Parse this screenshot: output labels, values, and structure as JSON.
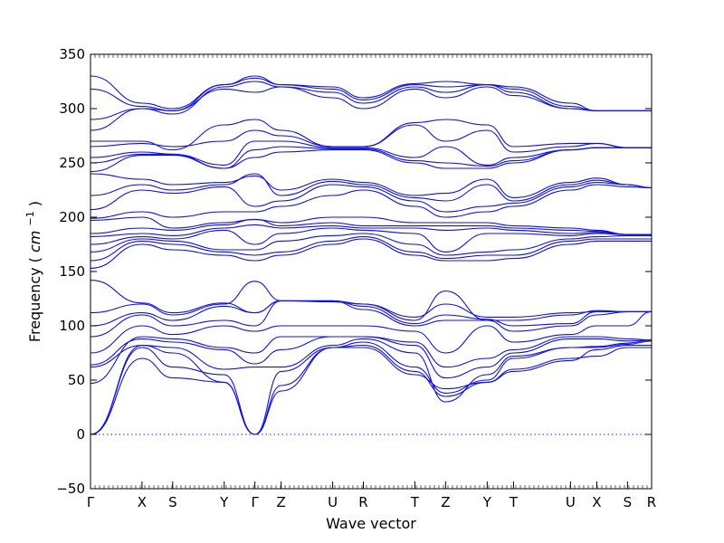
{
  "chart_data": {
    "type": "line",
    "xlabel": "Wave vector",
    "ylabel": "Frequency",
    "ylabel_unit_base": "cm",
    "ylabel_unit_exp": "−1",
    "ylim": [
      -50,
      350
    ],
    "yticks": [
      -50,
      0,
      50,
      100,
      150,
      200,
      250,
      300,
      350
    ],
    "xlim": [
      0,
      1
    ],
    "kpoints": [
      {
        "label": "Γ",
        "x": 0.0
      },
      {
        "label": "X",
        "x": 0.0918
      },
      {
        "label": "S",
        "x": 0.1465
      },
      {
        "label": "Y",
        "x": 0.2383
      },
      {
        "label": "Γ",
        "x": 0.293
      },
      {
        "label": "Z",
        "x": 0.3398
      },
      {
        "label": "U",
        "x": 0.4316
      },
      {
        "label": "R",
        "x": 0.4863
      },
      {
        "label": "T",
        "x": 0.5781
      },
      {
        "label": "Z",
        "x": 0.6328
      },
      {
        "label": "Y",
        "x": 0.707
      },
      {
        "label": "T",
        "x": 0.7539
      },
      {
        "label": "U",
        "x": 0.8555
      },
      {
        "label": "X",
        "x": 0.9023
      },
      {
        "label": "S",
        "x": 0.957
      },
      {
        "label": "R",
        "x": 1.0
      }
    ],
    "reference_line_y": 0,
    "line_color": "#1010e0",
    "series": [
      {
        "values": [
          0,
          70,
          52,
          48,
          0,
          45,
          80,
          80,
          55,
          42,
          48,
          60,
          70,
          72,
          80,
          80
        ]
      },
      {
        "values": [
          0,
          80,
          62,
          55,
          0,
          40,
          80,
          82,
          58,
          35,
          48,
          58,
          68,
          78,
          82,
          82
        ]
      },
      {
        "values": [
          0,
          82,
          75,
          48,
          0,
          58,
          80,
          85,
          62,
          38,
          50,
          70,
          80,
          80,
          83,
          86
        ]
      },
      {
        "values": [
          62,
          82,
          80,
          60,
          62,
          62,
          82,
          88,
          75,
          30,
          55,
          72,
          80,
          81,
          84,
          87
        ]
      },
      {
        "values": [
          64,
          88,
          85,
          78,
          65,
          78,
          90,
          90,
          82,
          52,
          62,
          75,
          88,
          88,
          86,
          87
        ]
      },
      {
        "values": [
          47,
          90,
          88,
          80,
          75,
          90,
          90,
          90,
          85,
          62,
          70,
          78,
          90,
          90,
          88,
          87
        ]
      },
      {
        "values": [
          75,
          100,
          92,
          100,
          95,
          100,
          100,
          100,
          95,
          75,
          100,
          85,
          92,
          100,
          100,
          113
        ]
      },
      {
        "values": [
          90,
          110,
          100,
          105,
          100,
          123,
          123,
          115,
          100,
          105,
          105,
          95,
          100,
          110,
          113,
          113
        ]
      },
      {
        "values": [
          100,
          112,
          105,
          118,
          112,
          123,
          123,
          118,
          102,
          110,
          106,
          100,
          102,
          113,
          113,
          113
        ]
      },
      {
        "values": [
          112,
          120,
          110,
          120,
          141,
          123,
          123,
          120,
          105,
          132,
          105,
          105,
          110,
          114,
          113,
          113
        ]
      },
      {
        "values": [
          142,
          121,
          112,
          121,
          112,
          123,
          122,
          120,
          108,
          120,
          108,
          108,
          112,
          113,
          113,
          113
        ]
      },
      {
        "values": [
          153,
          175,
          170,
          165,
          160,
          165,
          175,
          180,
          165,
          160,
          160,
          162,
          175,
          178,
          178,
          178
        ]
      },
      {
        "values": [
          160,
          178,
          175,
          168,
          165,
          168,
          178,
          182,
          168,
          162,
          165,
          165,
          178,
          180,
          180,
          180
        ]
      },
      {
        "values": [
          168,
          180,
          178,
          170,
          170,
          178,
          183,
          185,
          175,
          165,
          168,
          170,
          180,
          182,
          183,
          183
        ]
      },
      {
        "values": [
          175,
          182,
          180,
          188,
          175,
          185,
          190,
          188,
          185,
          168,
          185,
          185,
          183,
          185,
          184,
          184
        ]
      },
      {
        "values": [
          182,
          185,
          183,
          190,
          193,
          190,
          192,
          190,
          190,
          188,
          190,
          188,
          185,
          186,
          184,
          184
        ]
      },
      {
        "values": [
          185,
          190,
          188,
          193,
          198,
          192,
          195,
          192,
          192,
          192,
          192,
          190,
          188,
          187,
          184,
          184
        ]
      },
      {
        "values": [
          197,
          200,
          190,
          195,
          198,
          195,
          200,
          200,
          195,
          195,
          195,
          192,
          190,
          188,
          184,
          184
        ]
      },
      {
        "values": [
          199,
          205,
          200,
          205,
          205,
          210,
          220,
          225,
          210,
          200,
          205,
          210,
          225,
          230,
          228,
          227
        ]
      },
      {
        "values": [
          207,
          225,
          222,
          228,
          210,
          215,
          230,
          228,
          215,
          205,
          210,
          213,
          228,
          232,
          230,
          227
        ]
      },
      {
        "values": [
          220,
          230,
          225,
          230,
          240,
          220,
          233,
          230,
          218,
          215,
          230,
          215,
          230,
          234,
          230,
          227
        ]
      },
      {
        "values": [
          240,
          235,
          230,
          232,
          238,
          225,
          235,
          232,
          220,
          222,
          235,
          218,
          232,
          236,
          230,
          227
        ]
      },
      {
        "values": [
          242,
          257,
          257,
          245,
          255,
          260,
          262,
          262,
          250,
          245,
          245,
          250,
          262,
          264,
          264,
          264
        ]
      },
      {
        "values": [
          250,
          258,
          258,
          245,
          262,
          265,
          263,
          263,
          252,
          250,
          247,
          252,
          262,
          264,
          264,
          264
        ]
      },
      {
        "values": [
          255,
          260,
          258,
          248,
          270,
          270,
          264,
          264,
          255,
          265,
          248,
          255,
          262,
          264,
          264,
          264
        ]
      },
      {
        "values": [
          265,
          268,
          265,
          270,
          280,
          275,
          265,
          265,
          285,
          270,
          280,
          260,
          265,
          268,
          264,
          264
        ]
      },
      {
        "values": [
          270,
          270,
          262,
          285,
          290,
          280,
          265,
          265,
          287,
          290,
          285,
          265,
          268,
          268,
          264,
          264
        ]
      },
      {
        "values": [
          280,
          300,
          298,
          318,
          315,
          320,
          310,
          300,
          318,
          310,
          320,
          312,
          300,
          298,
          298,
          298
        ]
      },
      {
        "values": [
          290,
          300,
          295,
          320,
          325,
          320,
          315,
          305,
          320,
          315,
          322,
          315,
          300,
          298,
          298,
          298
        ]
      },
      {
        "values": [
          318,
          302,
          298,
          322,
          328,
          322,
          318,
          308,
          322,
          320,
          322,
          318,
          302,
          298,
          298,
          298
        ]
      },
      {
        "values": [
          330,
          305,
          300,
          322,
          330,
          322,
          320,
          310,
          323,
          325,
          322,
          320,
          305,
          298,
          298,
          298
        ]
      }
    ]
  }
}
